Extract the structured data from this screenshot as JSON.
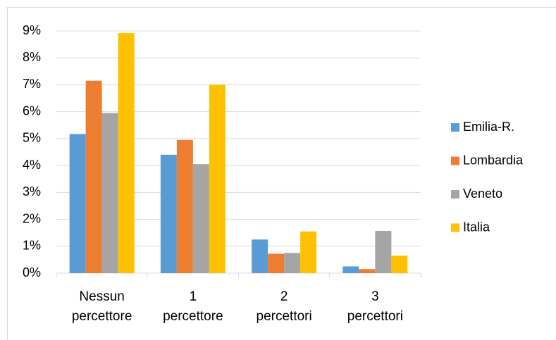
{
  "chart_data": {
    "type": "bar",
    "categories": [
      "Nessun percettore",
      "1 percettore",
      "2 percettori",
      "3 percettori"
    ],
    "series": [
      {
        "name": "Emilia-R.",
        "color": "#5b9bd5",
        "values": [
          5.17,
          4.4,
          1.25,
          0.25
        ]
      },
      {
        "name": "Lombardia",
        "color": "#ed7d31",
        "values": [
          7.15,
          4.95,
          0.72,
          0.15
        ]
      },
      {
        "name": "Veneto",
        "color": "#a5a5a5",
        "values": [
          5.95,
          4.05,
          0.75,
          1.57
        ]
      },
      {
        "name": "Italia",
        "color": "#ffc000",
        "values": [
          8.92,
          7.0,
          1.55,
          0.65
        ]
      }
    ],
    "ylim": [
      0,
      9
    ],
    "yticks": [
      {
        "value": 0,
        "label": "0%"
      },
      {
        "value": 1,
        "label": "1%"
      },
      {
        "value": 2,
        "label": "2%"
      },
      {
        "value": 3,
        "label": "3%"
      },
      {
        "value": 4,
        "label": "4%"
      },
      {
        "value": 5,
        "label": "5%"
      },
      {
        "value": 6,
        "label": "6%"
      },
      {
        "value": 7,
        "label": "7%"
      },
      {
        "value": 8,
        "label": "8%"
      },
      {
        "value": 9,
        "label": "9%"
      }
    ],
    "grid": true,
    "legend": "right"
  }
}
